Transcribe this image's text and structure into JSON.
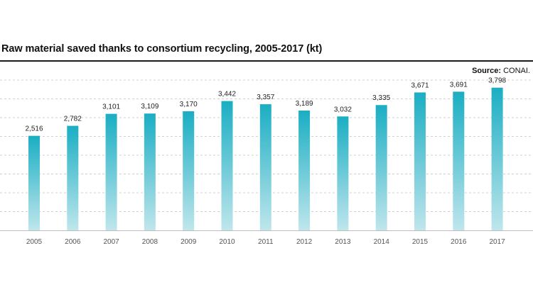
{
  "chart_data": {
    "type": "bar",
    "title": "Raw material saved thanks to consortium recycling, 2005-2017 (kt)",
    "source_label": "Source:",
    "source_value": "CONAI.",
    "categories": [
      "2005",
      "2006",
      "2007",
      "2008",
      "2009",
      "2010",
      "2011",
      "2012",
      "2013",
      "2014",
      "2015",
      "2016",
      "2017"
    ],
    "values": [
      2516,
      2782,
      3101,
      3109,
      3170,
      3442,
      3357,
      3189,
      3032,
      3335,
      3671,
      3691,
      3798
    ],
    "value_labels": [
      "2,516",
      "2,782",
      "3,101",
      "3,109",
      "3,170",
      "3,442",
      "3,357",
      "3,189",
      "3,032",
      "3,335",
      "3,671",
      "3,691",
      "3,798"
    ],
    "xlabel": "",
    "ylabel": "",
    "ylim": [
      0,
      4000
    ],
    "grid": true,
    "legend": "none",
    "colors": {
      "bar_top": "#1aaec3",
      "bar_bottom": "#bfe6ec",
      "grid": "#d0d0d0",
      "text": "#222222",
      "tick": "#555555"
    }
  }
}
